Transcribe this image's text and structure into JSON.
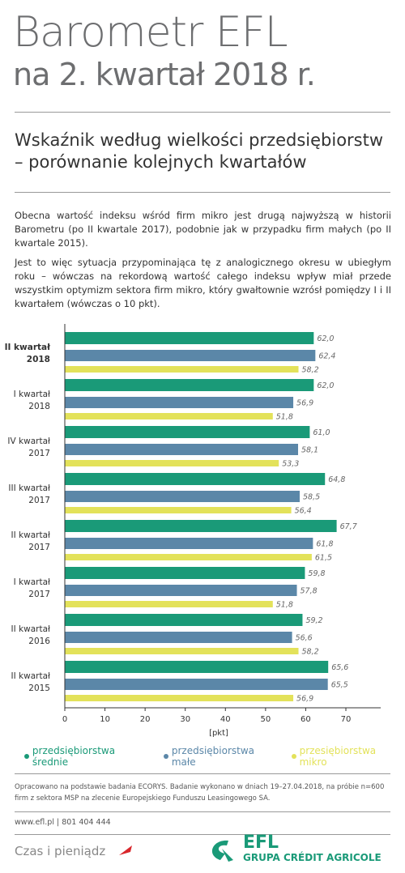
{
  "header": {
    "title": "Barometr EFL",
    "subtitle": "na 2. kwartał 2018 r."
  },
  "section": {
    "heading": "Wskaźnik według wielkości przedsiębiorstw – porównanie kolejnych kwartałów",
    "paragraphs": [
      "Obecna wartość indeksu wśród firm mikro jest drugą najwyższą w historii Barometru (po II kwartale 2017), podobnie jak w przypadku firm małych (po II kwartale 2015).",
      "Jest to więc sytuacja przypominająca tę z analogicznego okresu w ubiegłym roku – wówczas na rekordową wartość całego indeksu wpływ miał przede wszystkim optymizm sektora firm mikro, który gwałtownie wzrósł pomiędzy I i II kwartałem (wówczas o 10 pkt)."
    ]
  },
  "chart_data": {
    "type": "hbar",
    "x_label": "[pkt]",
    "categories": [
      "II kwartał 2018",
      "I kwartał 2018",
      "IV kwartał 2017",
      "III kwartał 2017",
      "II kwartał 2017",
      "I kwartał 2017",
      "II kwartał 2016",
      "II kwartał 2015"
    ],
    "series": [
      {
        "name": "przedsiębiorstwa średnie",
        "color": "#1a9a78",
        "values": [
          62.0,
          62.0,
          61.0,
          64.8,
          67.7,
          59.8,
          59.2,
          65.6
        ],
        "value_labels": [
          "62,0",
          "62,0",
          "61,0",
          "64,8",
          "67,7",
          "59,8",
          "59,2",
          "65,6"
        ]
      },
      {
        "name": "przedsiębiorstwa małe",
        "color": "#5b87a8",
        "values": [
          62.4,
          56.9,
          58.1,
          58.5,
          61.8,
          57.8,
          56.6,
          65.5
        ],
        "value_labels": [
          "62,4",
          "56,9",
          "58,1",
          "58,5",
          "61,8",
          "57,8",
          "56,6",
          "65,5"
        ]
      },
      {
        "name": "przesiębiorstwa mikro",
        "color": "#e3e25a",
        "values": [
          58.2,
          51.8,
          53.3,
          56.4,
          61.5,
          51.8,
          58.2,
          56.9
        ],
        "value_labels": [
          "58,2",
          "51,8",
          "53,3",
          "56,4",
          "61,5",
          "51,8",
          "58,2",
          "56,9"
        ]
      }
    ],
    "xlim": [
      0,
      70
    ],
    "xticks": [
      0,
      10,
      20,
      30,
      40,
      50,
      60,
      70
    ]
  },
  "footer": {
    "note": "Opracowano na podstawie badania ECORYS. Badanie wykonano w dniach 19–27.04.2018, na próbie n=600 firm z sektora MSP na zlecenie Europejskiego Funduszu Leasingowego SA.",
    "contact": "www.efl.pl | 801 404 444",
    "slogan": "Czas i pieniądz",
    "brand": "EFL",
    "group": "GRUPA CRÉDIT AGRICOLE"
  }
}
